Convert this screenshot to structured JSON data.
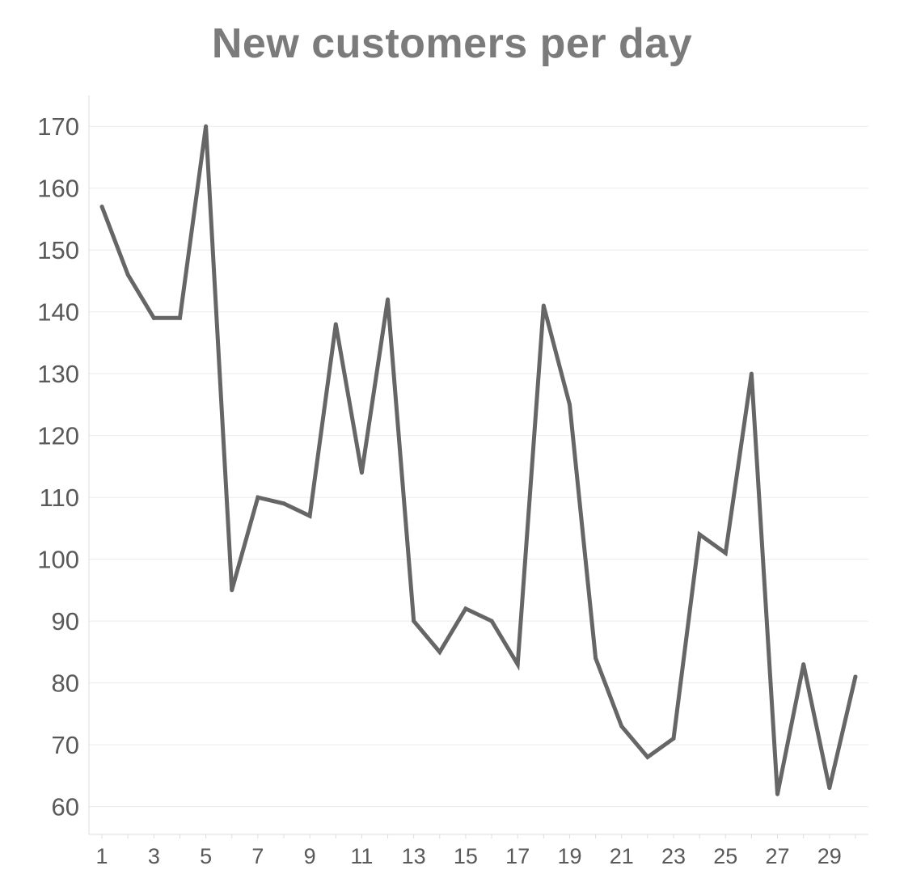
{
  "chart_data": {
    "type": "line",
    "title": "New customers per day",
    "xlabel": "",
    "ylabel": "",
    "x": [
      1,
      2,
      3,
      4,
      5,
      6,
      7,
      8,
      9,
      10,
      11,
      12,
      13,
      14,
      15,
      16,
      17,
      18,
      19,
      20,
      21,
      22,
      23,
      24,
      25,
      26,
      27,
      28,
      29,
      30
    ],
    "series": [
      {
        "values": [
          157,
          146,
          139,
          139,
          170,
          95,
          110,
          109,
          107,
          138,
          114,
          142,
          90,
          85,
          92,
          90,
          83,
          141,
          125,
          84,
          73,
          68,
          71,
          104,
          101,
          130,
          62,
          83,
          63,
          81
        ]
      }
    ],
    "x_tick_labels": [
      "1",
      "3",
      "5",
      "7",
      "9",
      "11",
      "13",
      "15",
      "17",
      "19",
      "21",
      "23",
      "25",
      "27",
      "29"
    ],
    "y_tick_labels": [
      "170",
      "160",
      "150",
      "140",
      "130",
      "120",
      "110",
      "100",
      "90",
      "80",
      "70",
      "60"
    ],
    "y_ticks": [
      170,
      160,
      150,
      140,
      130,
      120,
      110,
      100,
      90,
      80,
      70,
      60
    ],
    "x_ticks": [
      1,
      3,
      5,
      7,
      9,
      11,
      13,
      15,
      17,
      19,
      21,
      23,
      25,
      27,
      29
    ],
    "ylim": [
      55.5,
      175
    ],
    "xlim": [
      0.5,
      30.5
    ],
    "grid": true,
    "colors": {
      "line": "#666666",
      "grid": "#ebebeb",
      "axis": "#dddddd",
      "title": "#7b7b7b",
      "tick_label": "#595959"
    }
  }
}
